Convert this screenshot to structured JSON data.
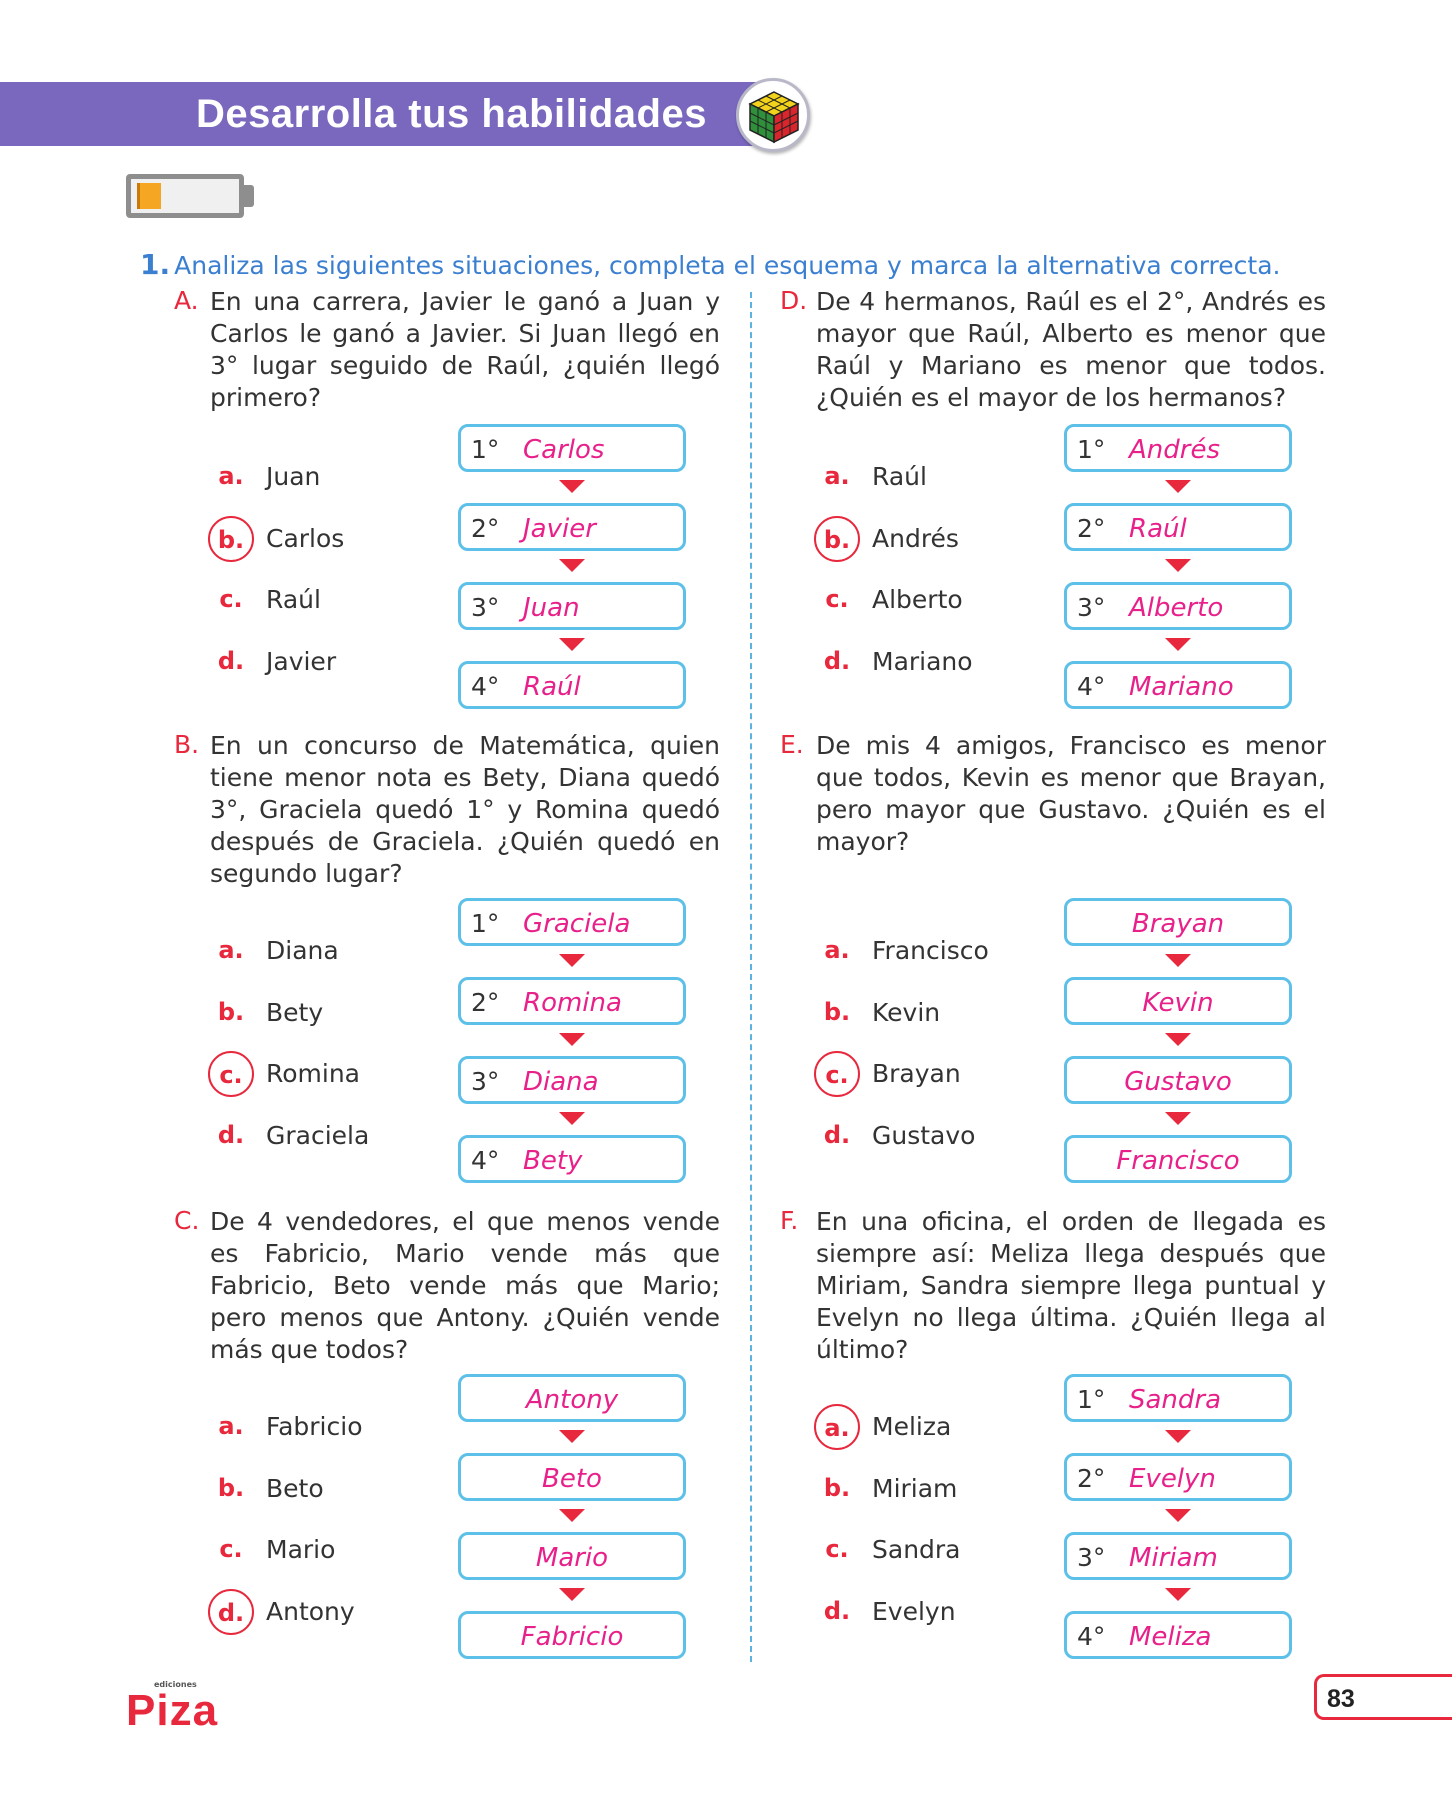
{
  "header": {
    "title": "Desarrolla tus habilidades",
    "level_fraction": 0.25
  },
  "instruction": {
    "number": "1.",
    "text": "Analiza las siguientes situaciones, completa el esquema y marca la alternativa correcta."
  },
  "problems": [
    {
      "letter": "A.",
      "question": "En una carrera, Javier le ganó a Juan y Carlos le ganó a Javier. Si Juan llegó en 3° lugar seguido de Raúl, ¿quién llegó primero?",
      "options": [
        {
          "label": "a.",
          "text": "Juan"
        },
        {
          "label": "b.",
          "text": "Carlos"
        },
        {
          "label": "c.",
          "text": "Raúl"
        },
        {
          "label": "d.",
          "text": "Javier"
        }
      ],
      "answer_index": 1,
      "scheme": [
        {
          "rank": "1°",
          "name": "Carlos"
        },
        {
          "rank": "2°",
          "name": "Javier"
        },
        {
          "rank": "3°",
          "name": "Juan"
        },
        {
          "rank": "4°",
          "name": "Raúl"
        }
      ]
    },
    {
      "letter": "B.",
      "question": "En un concurso de Matemática, quien tiene menor nota es Bety, Diana quedó 3°, Graciela quedó 1° y Romina quedó después de Graciela. ¿Quién quedó en segundo lugar?",
      "options": [
        {
          "label": "a.",
          "text": "Diana"
        },
        {
          "label": "b.",
          "text": "Bety"
        },
        {
          "label": "c.",
          "text": "Romina"
        },
        {
          "label": "d.",
          "text": "Graciela"
        }
      ],
      "answer_index": 2,
      "scheme": [
        {
          "rank": "1°",
          "name": "Graciela"
        },
        {
          "rank": "2°",
          "name": "Romina"
        },
        {
          "rank": "3°",
          "name": "Diana"
        },
        {
          "rank": "4°",
          "name": "Bety"
        }
      ]
    },
    {
      "letter": "C.",
      "question": "De 4 vendedores, el que menos vende es Fabricio, Mario vende más que Fabricio, Beto vende más que Mario; pero menos que Antony. ¿Quién vende más que todos?",
      "options": [
        {
          "label": "a.",
          "text": "Fabricio"
        },
        {
          "label": "b.",
          "text": "Beto"
        },
        {
          "label": "c.",
          "text": "Mario"
        },
        {
          "label": "d.",
          "text": "Antony"
        }
      ],
      "answer_index": 3,
      "scheme": [
        {
          "rank": "",
          "name": "Antony"
        },
        {
          "rank": "",
          "name": "Beto"
        },
        {
          "rank": "",
          "name": "Mario"
        },
        {
          "rank": "",
          "name": "Fabricio"
        }
      ]
    },
    {
      "letter": "D.",
      "question": "De 4 hermanos, Raúl es el 2°, Andrés es mayor que Raúl, Alberto es menor que Raúl y Mariano es menor que todos. ¿Quién es el mayor de los hermanos?",
      "options": [
        {
          "label": "a.",
          "text": "Raúl"
        },
        {
          "label": "b.",
          "text": "Andrés"
        },
        {
          "label": "c.",
          "text": "Alberto"
        },
        {
          "label": "d.",
          "text": "Mariano"
        }
      ],
      "answer_index": 1,
      "scheme": [
        {
          "rank": "1°",
          "name": "Andrés"
        },
        {
          "rank": "2°",
          "name": "Raúl"
        },
        {
          "rank": "3°",
          "name": "Alberto"
        },
        {
          "rank": "4°",
          "name": "Mariano"
        }
      ]
    },
    {
      "letter": "E.",
      "question": "De mis 4 amigos, Francisco es menor que todos, Kevin es menor que Brayan, pero mayor que Gustavo. ¿Quién es el mayor?",
      "options": [
        {
          "label": "a.",
          "text": "Francisco"
        },
        {
          "label": "b.",
          "text": "Kevin"
        },
        {
          "label": "c.",
          "text": "Brayan"
        },
        {
          "label": "d.",
          "text": "Gustavo"
        }
      ],
      "answer_index": 2,
      "scheme": [
        {
          "rank": "",
          "name": "Brayan"
        },
        {
          "rank": "",
          "name": "Kevin"
        },
        {
          "rank": "",
          "name": "Gustavo"
        },
        {
          "rank": "",
          "name": "Francisco"
        }
      ]
    },
    {
      "letter": "F.",
      "question": "En una oficina, el orden de llegada es siempre así: Meliza llega después que Miriam, Sandra siempre llega puntual y Evelyn no llega última. ¿Quién llega al último?",
      "options": [
        {
          "label": "a.",
          "text": "Meliza"
        },
        {
          "label": "b.",
          "text": "Miriam"
        },
        {
          "label": "c.",
          "text": "Sandra"
        },
        {
          "label": "d.",
          "text": "Evelyn"
        }
      ],
      "answer_index": 0,
      "scheme": [
        {
          "rank": "1°",
          "name": "Sandra"
        },
        {
          "rank": "2°",
          "name": "Evelyn"
        },
        {
          "rank": "3°",
          "name": "Miriam"
        },
        {
          "rank": "4°",
          "name": "Meliza"
        }
      ]
    }
  ],
  "footer": {
    "logo_small": "ediciones",
    "logo": "Piza",
    "page_number": "83"
  },
  "colors": {
    "banner": "#7a68bf",
    "accent_red": "#e8283c",
    "answer_pink": "#e8208a",
    "box_border": "#5cc0e8",
    "instruction_blue": "#3b7fd0"
  }
}
